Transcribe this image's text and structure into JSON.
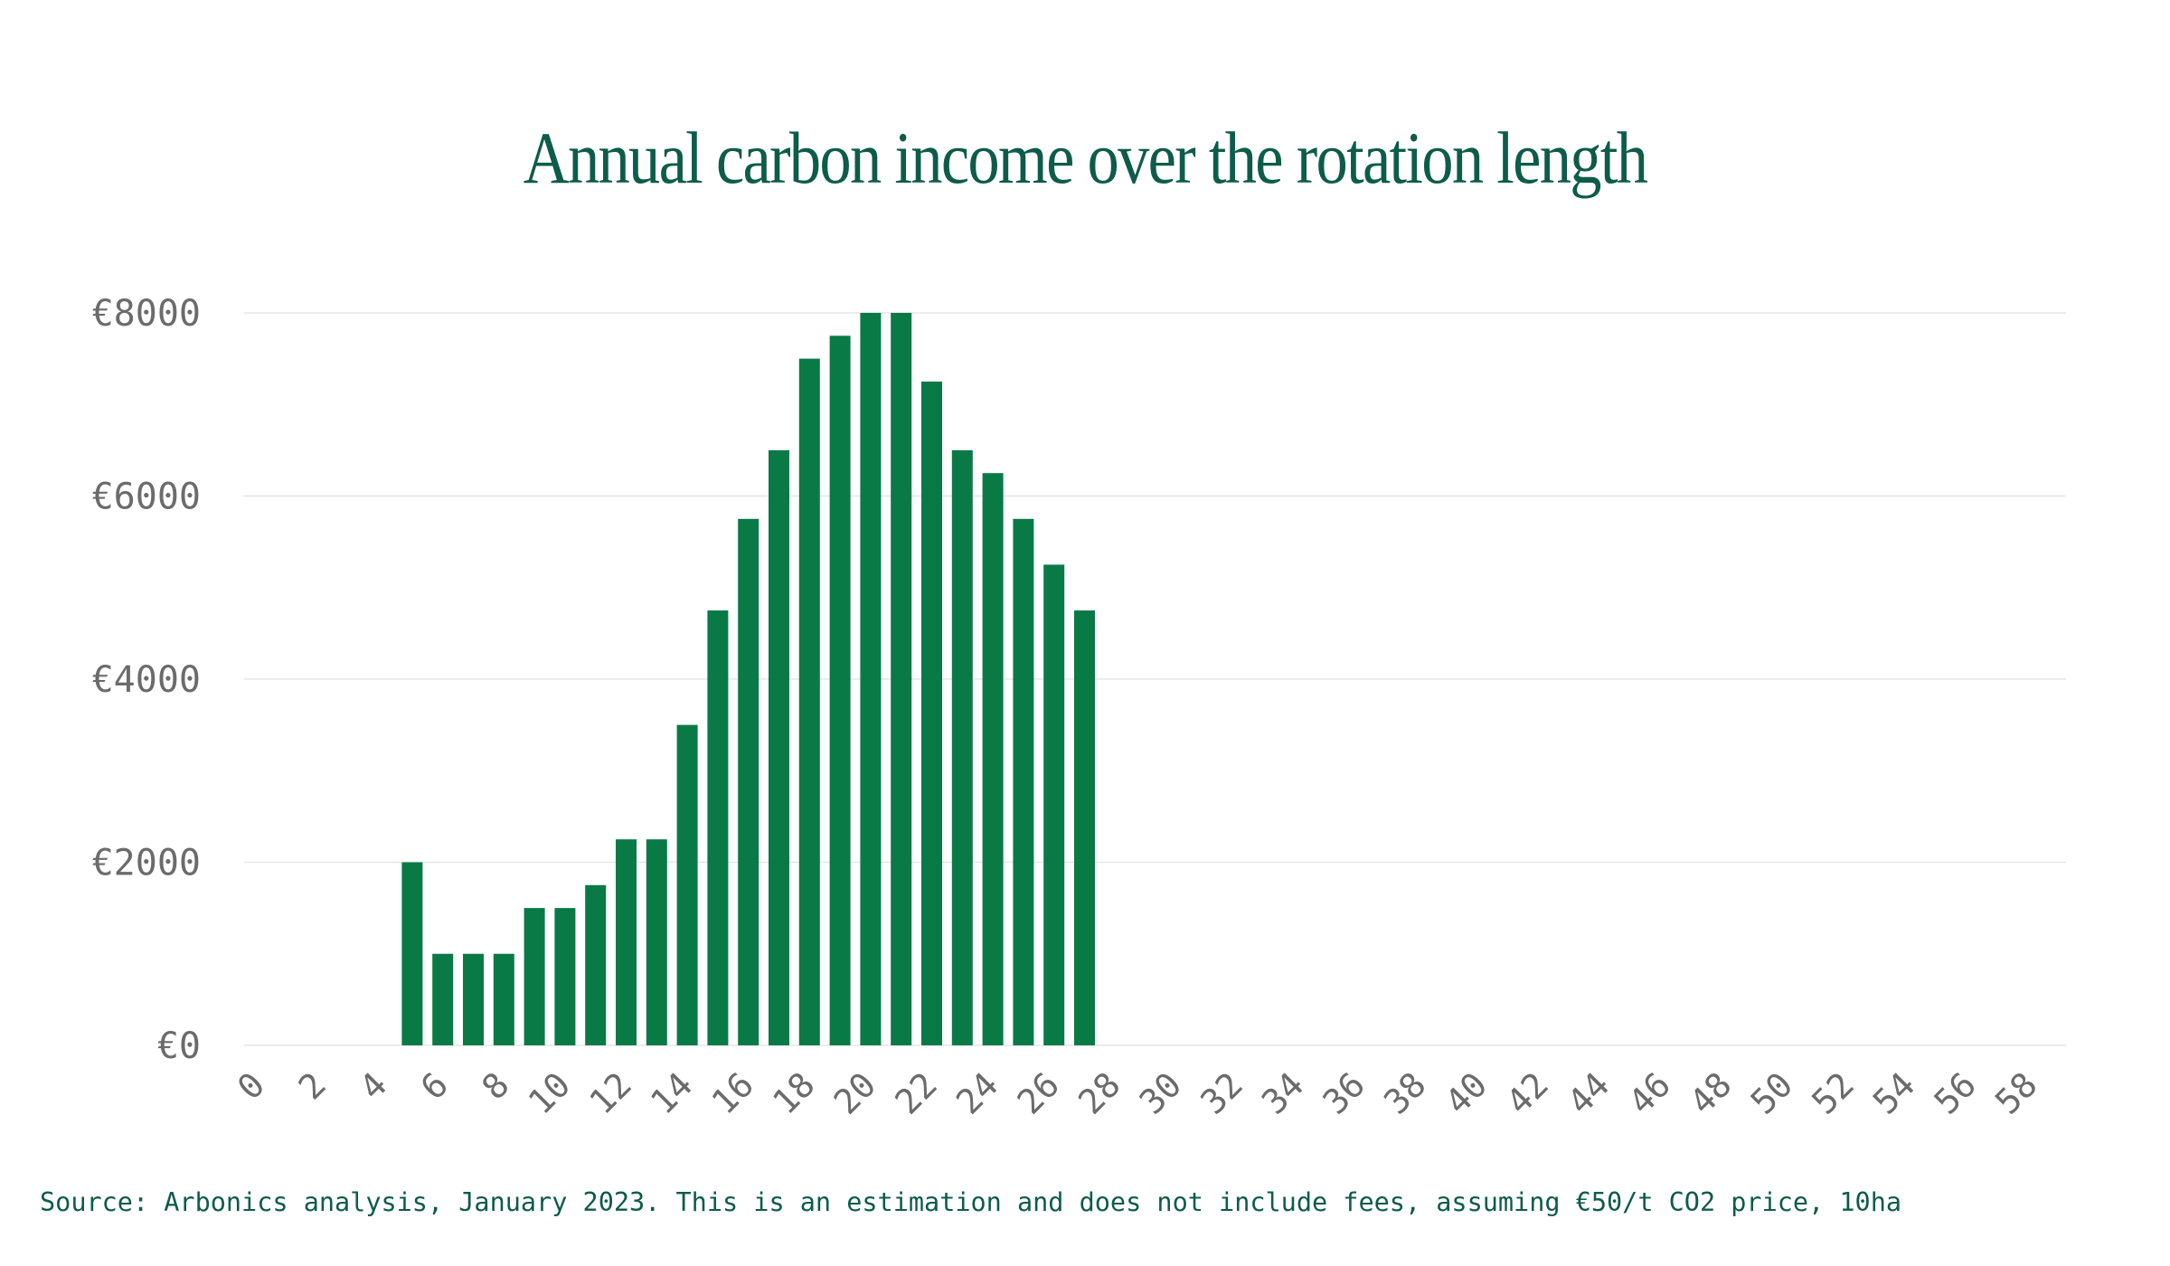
{
  "chart_data": {
    "type": "bar",
    "title": "Annual carbon income over the rotation length",
    "xlabel": "",
    "ylabel": "",
    "x": [
      0,
      1,
      2,
      3,
      4,
      5,
      6,
      7,
      8,
      9,
      10,
      11,
      12,
      13,
      14,
      15,
      16,
      17,
      18,
      19,
      20,
      21,
      22,
      23,
      24,
      25,
      26,
      27,
      28,
      29,
      30,
      31,
      32,
      33,
      34,
      35,
      36,
      37,
      38,
      39,
      40,
      41,
      42,
      43,
      44,
      45,
      46,
      47,
      48,
      49,
      50,
      51,
      52,
      53,
      54,
      55,
      56,
      57,
      58,
      59
    ],
    "values": [
      0,
      0,
      0,
      0,
      0,
      2000,
      1000,
      1000,
      1000,
      1500,
      1500,
      1750,
      2250,
      2250,
      3500,
      4750,
      5750,
      6500,
      7500,
      7750,
      8000,
      8000,
      7250,
      6500,
      6250,
      5750,
      5250,
      4750,
      0,
      0,
      0,
      0,
      0,
      0,
      0,
      0,
      0,
      0,
      0,
      0,
      0,
      0,
      0,
      0,
      0,
      0,
      0,
      0,
      0,
      0,
      0,
      0,
      0,
      0,
      0,
      0,
      0,
      0,
      0,
      0
    ],
    "ylim": [
      0,
      8000
    ],
    "yticks": [
      0,
      2000,
      4000,
      6000,
      8000
    ],
    "ytick_labels": [
      "€0",
      "€2000",
      "€4000",
      "€6000",
      "€8000"
    ],
    "xticks": [
      0,
      2,
      4,
      6,
      8,
      10,
      12,
      14,
      16,
      18,
      20,
      22,
      24,
      26,
      28,
      30,
      32,
      34,
      36,
      38,
      40,
      42,
      44,
      46,
      48,
      50,
      52,
      54,
      56,
      58
    ],
    "xtick_labels": [
      "0",
      "2",
      "4",
      "6",
      "8",
      "10",
      "12",
      "14",
      "16",
      "18",
      "20",
      "22",
      "24",
      "26",
      "28",
      "30",
      "32",
      "34",
      "36",
      "38",
      "40",
      "42",
      "44",
      "46",
      "48",
      "50",
      "52",
      "54",
      "56",
      "58"
    ],
    "grid": true,
    "legend": "none",
    "bar_color": "#097a46",
    "grid_color": "#e6e6e6"
  },
  "source_note": "Source: Arbonics analysis, January 2023. This is an estimation and does not include fees, assuming €50/t CO2 price, 10ha"
}
